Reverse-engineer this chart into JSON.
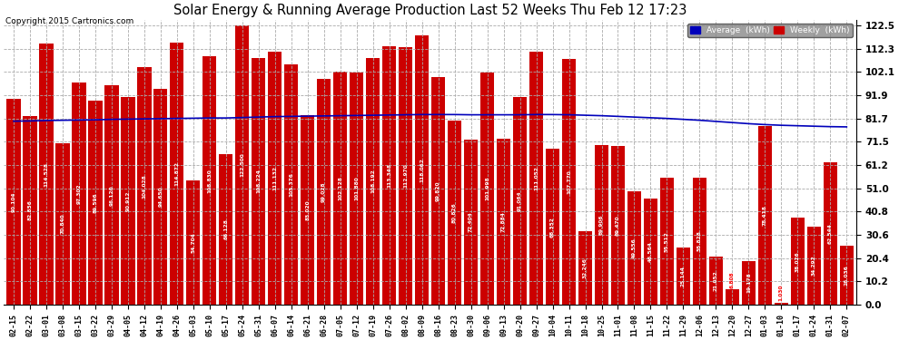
{
  "title": "Solar Energy & Running Average Production Last 52 Weeks Thu Feb 12 17:23",
  "copyright": "Copyright 2015 Cartronics.com",
  "bar_color": "#cc0000",
  "avg_line_color": "#0000bb",
  "background_color": "#ffffff",
  "plot_bg_color": "#ffffff",
  "grid_color": "#aaaaaa",
  "legend_avg_color": "#0000bb",
  "legend_weekly_color": "#cc0000",
  "dates": [
    "02-15",
    "02-22",
    "03-01",
    "03-08",
    "03-15",
    "03-22",
    "03-29",
    "04-05",
    "04-12",
    "04-19",
    "04-26",
    "05-03",
    "05-10",
    "05-17",
    "05-24",
    "05-31",
    "06-07",
    "06-14",
    "06-21",
    "06-28",
    "07-05",
    "07-12",
    "07-19",
    "07-26",
    "08-02",
    "08-09",
    "08-16",
    "08-23",
    "08-30",
    "09-06",
    "09-13",
    "09-20",
    "09-27",
    "10-04",
    "10-11",
    "10-18",
    "10-25",
    "11-01",
    "11-08",
    "11-15",
    "11-22",
    "11-29",
    "12-06",
    "12-13",
    "12-20",
    "12-27",
    "01-03",
    "01-10",
    "01-17",
    "01-24",
    "01-31",
    "02-07"
  ],
  "weekly_values": [
    90.104,
    82.856,
    114.528,
    70.84,
    97.302,
    89.596,
    96.12,
    90.912,
    104.028,
    94.65,
    114.872,
    54.704,
    108.83,
    66.128,
    122.5,
    108.224,
    111.132,
    105.376,
    83.02,
    99.028,
    102.128,
    101.88,
    108.192,
    113.348,
    112.97,
    118.062,
    99.82,
    80.826,
    72.404,
    101.998,
    72.884,
    91.064,
    111.052,
    68.352,
    107.77,
    32.246,
    69.906,
    69.47,
    49.556,
    46.564,
    55.512,
    25.144,
    55.828,
    21.052,
    6.808,
    19.178,
    78.418,
    1.03,
    38.026,
    34.292,
    62.544,
    26.036
  ],
  "avg_values": [
    80.5,
    80.6,
    80.8,
    80.9,
    81.0,
    81.1,
    81.3,
    81.4,
    81.5,
    81.6,
    81.7,
    81.8,
    81.9,
    81.9,
    82.1,
    82.3,
    82.5,
    82.6,
    82.7,
    82.8,
    82.9,
    83.0,
    83.1,
    83.2,
    83.3,
    83.4,
    83.4,
    83.4,
    83.3,
    83.3,
    83.3,
    83.3,
    83.4,
    83.4,
    83.3,
    83.1,
    82.9,
    82.6,
    82.3,
    82.0,
    81.7,
    81.3,
    80.9,
    80.4,
    79.9,
    79.4,
    79.0,
    78.7,
    78.5,
    78.3,
    78.1,
    78.0
  ],
  "yticks": [
    0.0,
    10.2,
    20.4,
    30.6,
    40.8,
    51.0,
    61.2,
    71.5,
    81.7,
    91.9,
    102.1,
    112.3,
    122.5
  ],
  "ylim": [
    0,
    125
  ]
}
